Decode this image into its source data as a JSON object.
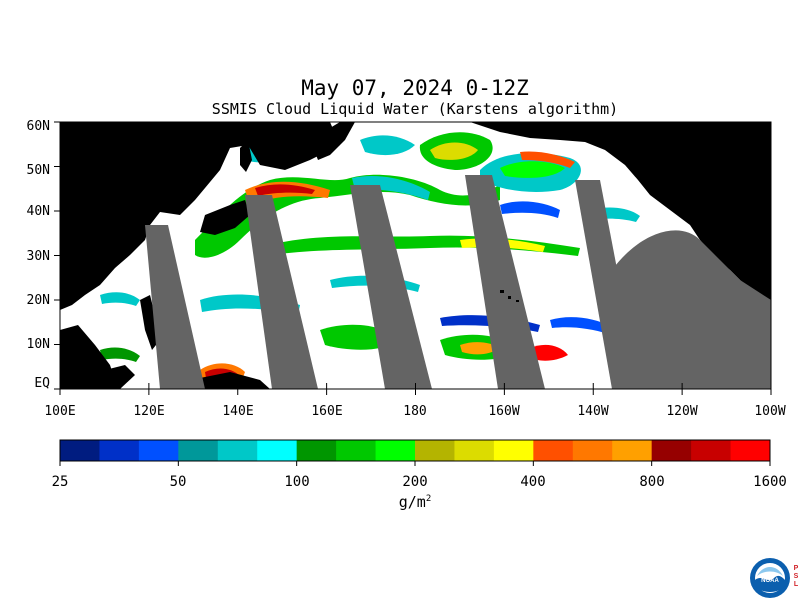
{
  "title": "May 07, 2024 0-12Z",
  "subtitle": "SSMIS Cloud Liquid Water (Karstens algorithm)",
  "lat_labels": [
    "60N",
    "50N",
    "40N",
    "30N",
    "20N",
    "10N",
    "EQ"
  ],
  "lon_labels": [
    "100E",
    "120E",
    "140E",
    "160E",
    "180",
    "160W",
    "140W",
    "120W",
    "100W"
  ],
  "colorbar": {
    "tick_labels": [
      "25",
      "50",
      "100",
      "200",
      "400",
      "800",
      "1600"
    ],
    "unit": "g/m",
    "unit_sup": "2",
    "colors": [
      "#001c80",
      "#0030c8",
      "#0050ff",
      "#00989a",
      "#00c8c8",
      "#00ffff",
      "#009600",
      "#00c800",
      "#00ff00",
      "#b4b400",
      "#dcdc00",
      "#ffff00",
      "#ff5000",
      "#ff7800",
      "#ffa000",
      "#960000",
      "#c80000",
      "#ff0000"
    ]
  },
  "map_colors": {
    "land": "#000000",
    "no_data_swath": "#646464",
    "ocean_clear": "#ffffff"
  },
  "logo_text": "NOAA",
  "logo_side_text": "PSL"
}
